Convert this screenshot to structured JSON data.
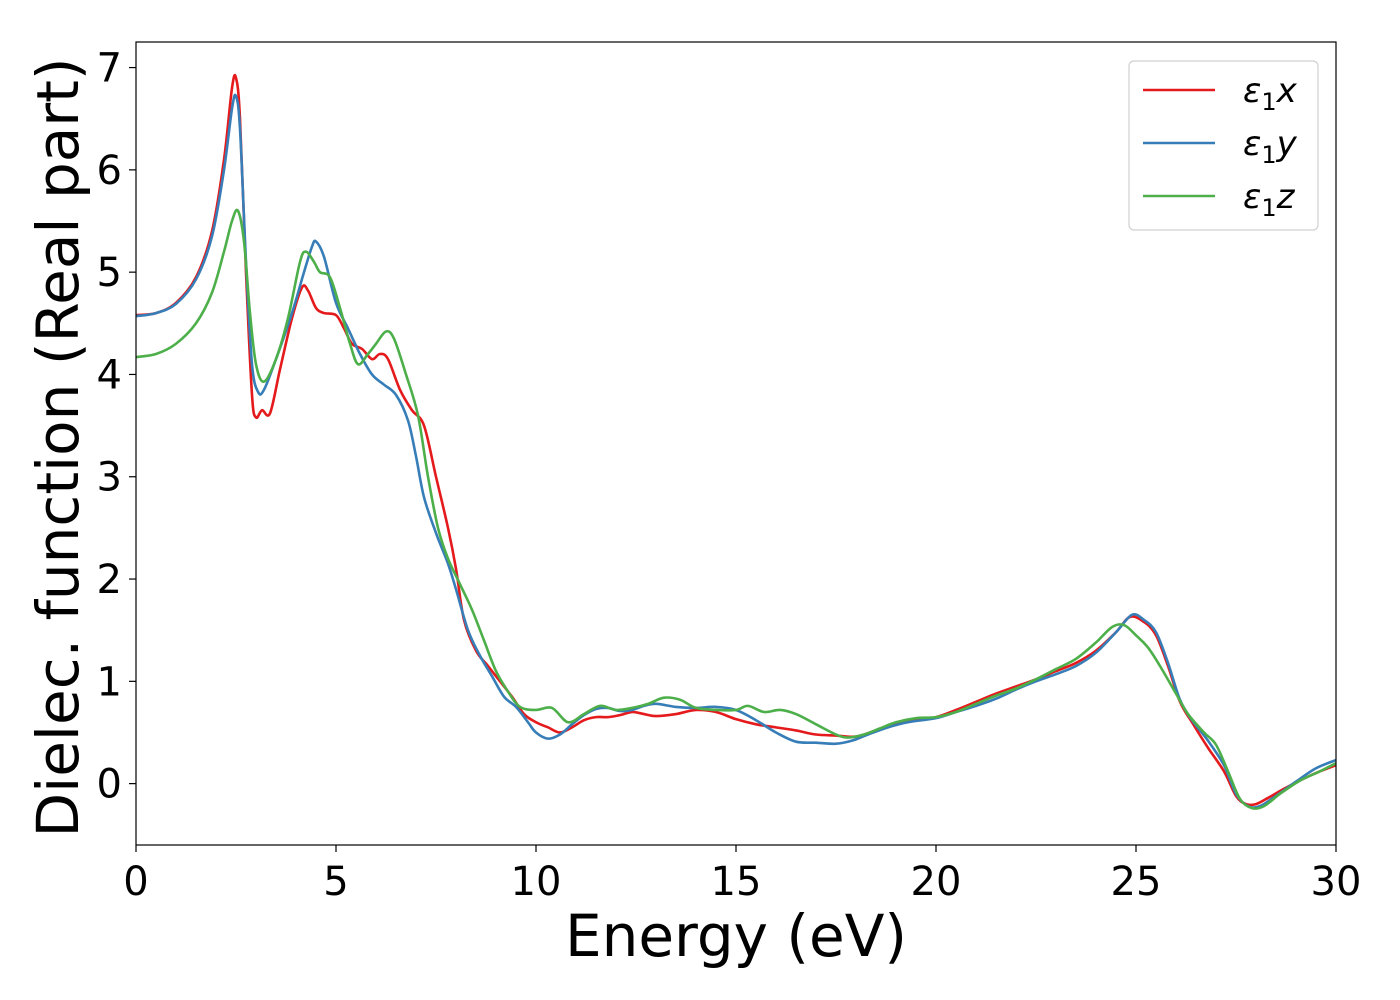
{
  "chart_data": {
    "type": "line",
    "title": "",
    "xlabel": "Energy (eV)",
    "ylabel": "Dielec. function (Real part)",
    "xlim": [
      0,
      30
    ],
    "ylim": [
      -0.6,
      7.25
    ],
    "xticks": [
      0,
      5,
      10,
      15,
      20,
      25,
      30
    ],
    "yticks": [
      0,
      1,
      2,
      3,
      4,
      5,
      6,
      7
    ],
    "grid": false,
    "legend_position": "top-right",
    "series": [
      {
        "name": "ε₁x",
        "legend_base": "ε",
        "legend_sub": "1",
        "legend_var": "x",
        "color": "#e41a1c",
        "points": [
          [
            0,
            4.58
          ],
          [
            0.5,
            4.6
          ],
          [
            1,
            4.7
          ],
          [
            1.5,
            4.95
          ],
          [
            1.9,
            5.4
          ],
          [
            2.2,
            6.1
          ],
          [
            2.4,
            6.8
          ],
          [
            2.5,
            6.9
          ],
          [
            2.6,
            6.5
          ],
          [
            2.75,
            5.0
          ],
          [
            2.9,
            3.8
          ],
          [
            3.0,
            3.58
          ],
          [
            3.15,
            3.65
          ],
          [
            3.35,
            3.62
          ],
          [
            3.6,
            4.05
          ],
          [
            3.9,
            4.55
          ],
          [
            4.15,
            4.85
          ],
          [
            4.3,
            4.82
          ],
          [
            4.5,
            4.65
          ],
          [
            4.7,
            4.6
          ],
          [
            5.0,
            4.58
          ],
          [
            5.2,
            4.45
          ],
          [
            5.4,
            4.3
          ],
          [
            5.65,
            4.25
          ],
          [
            5.9,
            4.15
          ],
          [
            6.1,
            4.2
          ],
          [
            6.3,
            4.15
          ],
          [
            6.6,
            3.85
          ],
          [
            6.9,
            3.65
          ],
          [
            7.2,
            3.5
          ],
          [
            7.5,
            3.0
          ],
          [
            7.8,
            2.5
          ],
          [
            8.0,
            2.1
          ],
          [
            8.2,
            1.6
          ],
          [
            8.5,
            1.3
          ],
          [
            8.8,
            1.15
          ],
          [
            9.1,
            1.0
          ],
          [
            9.4,
            0.85
          ],
          [
            9.7,
            0.68
          ],
          [
            10.0,
            0.6
          ],
          [
            10.3,
            0.55
          ],
          [
            10.6,
            0.5
          ],
          [
            10.9,
            0.55
          ],
          [
            11.2,
            0.62
          ],
          [
            11.5,
            0.65
          ],
          [
            11.8,
            0.65
          ],
          [
            12.1,
            0.67
          ],
          [
            12.4,
            0.7
          ],
          [
            12.7,
            0.68
          ],
          [
            13.0,
            0.66
          ],
          [
            13.5,
            0.68
          ],
          [
            14.0,
            0.72
          ],
          [
            14.5,
            0.7
          ],
          [
            15.0,
            0.63
          ],
          [
            15.5,
            0.58
          ],
          [
            16.0,
            0.55
          ],
          [
            16.5,
            0.52
          ],
          [
            17.0,
            0.48
          ],
          [
            17.5,
            0.47
          ],
          [
            18.0,
            0.46
          ],
          [
            18.5,
            0.52
          ],
          [
            19.0,
            0.58
          ],
          [
            19.5,
            0.62
          ],
          [
            20.0,
            0.65
          ],
          [
            20.5,
            0.72
          ],
          [
            21.0,
            0.8
          ],
          [
            21.5,
            0.88
          ],
          [
            22.0,
            0.95
          ],
          [
            22.5,
            1.02
          ],
          [
            23.0,
            1.1
          ],
          [
            23.5,
            1.18
          ],
          [
            24.0,
            1.3
          ],
          [
            24.5,
            1.48
          ],
          [
            24.85,
            1.63
          ],
          [
            25.2,
            1.58
          ],
          [
            25.5,
            1.45
          ],
          [
            25.8,
            1.15
          ],
          [
            26.1,
            0.8
          ],
          [
            26.4,
            0.6
          ],
          [
            26.8,
            0.35
          ],
          [
            27.2,
            0.12
          ],
          [
            27.5,
            -0.12
          ],
          [
            27.75,
            -0.2
          ],
          [
            28.0,
            -0.2
          ],
          [
            28.3,
            -0.14
          ],
          [
            28.7,
            -0.05
          ],
          [
            29.2,
            0.05
          ],
          [
            29.6,
            0.12
          ],
          [
            30,
            0.18
          ]
        ]
      },
      {
        "name": "ε₁y",
        "legend_base": "ε",
        "legend_sub": "1",
        "legend_var": "y",
        "color": "#377eb8",
        "points": [
          [
            0,
            4.57
          ],
          [
            0.5,
            4.6
          ],
          [
            1,
            4.69
          ],
          [
            1.5,
            4.93
          ],
          [
            1.9,
            5.35
          ],
          [
            2.2,
            6.0
          ],
          [
            2.4,
            6.6
          ],
          [
            2.5,
            6.72
          ],
          [
            2.6,
            6.4
          ],
          [
            2.75,
            5.1
          ],
          [
            2.9,
            4.1
          ],
          [
            3.05,
            3.83
          ],
          [
            3.2,
            3.85
          ],
          [
            3.5,
            4.15
          ],
          [
            3.9,
            4.6
          ],
          [
            4.2,
            5.0
          ],
          [
            4.4,
            5.25
          ],
          [
            4.5,
            5.3
          ],
          [
            4.7,
            5.15
          ],
          [
            5.0,
            4.7
          ],
          [
            5.3,
            4.45
          ],
          [
            5.6,
            4.2
          ],
          [
            5.9,
            4.0
          ],
          [
            6.2,
            3.9
          ],
          [
            6.5,
            3.8
          ],
          [
            6.8,
            3.55
          ],
          [
            7.0,
            3.2
          ],
          [
            7.2,
            2.8
          ],
          [
            7.5,
            2.45
          ],
          [
            7.8,
            2.15
          ],
          [
            8.0,
            1.9
          ],
          [
            8.3,
            1.5
          ],
          [
            8.6,
            1.25
          ],
          [
            8.9,
            1.05
          ],
          [
            9.2,
            0.85
          ],
          [
            9.5,
            0.75
          ],
          [
            9.8,
            0.6
          ],
          [
            10.0,
            0.5
          ],
          [
            10.3,
            0.44
          ],
          [
            10.6,
            0.48
          ],
          [
            10.9,
            0.58
          ],
          [
            11.2,
            0.67
          ],
          [
            11.5,
            0.73
          ],
          [
            11.8,
            0.74
          ],
          [
            12.1,
            0.71
          ],
          [
            12.4,
            0.72
          ],
          [
            12.7,
            0.76
          ],
          [
            13.0,
            0.78
          ],
          [
            13.5,
            0.75
          ],
          [
            14.0,
            0.74
          ],
          [
            14.5,
            0.75
          ],
          [
            15.0,
            0.72
          ],
          [
            15.5,
            0.62
          ],
          [
            16.0,
            0.5
          ],
          [
            16.5,
            0.41
          ],
          [
            17.0,
            0.4
          ],
          [
            17.5,
            0.39
          ],
          [
            17.9,
            0.42
          ],
          [
            18.3,
            0.48
          ],
          [
            18.8,
            0.55
          ],
          [
            19.3,
            0.6
          ],
          [
            20.0,
            0.64
          ],
          [
            20.5,
            0.7
          ],
          [
            21.0,
            0.76
          ],
          [
            21.5,
            0.83
          ],
          [
            22.0,
            0.92
          ],
          [
            22.5,
            1.0
          ],
          [
            23.0,
            1.07
          ],
          [
            23.5,
            1.15
          ],
          [
            24.0,
            1.28
          ],
          [
            24.5,
            1.48
          ],
          [
            24.9,
            1.65
          ],
          [
            25.2,
            1.6
          ],
          [
            25.5,
            1.48
          ],
          [
            25.8,
            1.18
          ],
          [
            26.1,
            0.82
          ],
          [
            26.4,
            0.62
          ],
          [
            26.8,
            0.42
          ],
          [
            27.2,
            0.18
          ],
          [
            27.5,
            -0.1
          ],
          [
            27.8,
            -0.22
          ],
          [
            28.1,
            -0.22
          ],
          [
            28.5,
            -0.12
          ],
          [
            29.0,
            0.02
          ],
          [
            29.5,
            0.15
          ],
          [
            30,
            0.23
          ]
        ]
      },
      {
        "name": "ε₁z",
        "legend_base": "ε",
        "legend_sub": "1",
        "legend_var": "z",
        "color": "#4daf4a",
        "points": [
          [
            0,
            4.17
          ],
          [
            0.5,
            4.2
          ],
          [
            1,
            4.3
          ],
          [
            1.5,
            4.5
          ],
          [
            1.9,
            4.8
          ],
          [
            2.2,
            5.2
          ],
          [
            2.4,
            5.5
          ],
          [
            2.55,
            5.6
          ],
          [
            2.7,
            5.3
          ],
          [
            2.85,
            4.6
          ],
          [
            3.0,
            4.1
          ],
          [
            3.2,
            3.93
          ],
          [
            3.5,
            4.15
          ],
          [
            3.8,
            4.55
          ],
          [
            4.1,
            5.1
          ],
          [
            4.25,
            5.2
          ],
          [
            4.45,
            5.1
          ],
          [
            4.6,
            5.0
          ],
          [
            4.85,
            4.95
          ],
          [
            5.1,
            4.65
          ],
          [
            5.35,
            4.3
          ],
          [
            5.55,
            4.1
          ],
          [
            5.8,
            4.2
          ],
          [
            6.0,
            4.3
          ],
          [
            6.25,
            4.42
          ],
          [
            6.45,
            4.35
          ],
          [
            6.75,
            4.0
          ],
          [
            7.05,
            3.6
          ],
          [
            7.3,
            3.0
          ],
          [
            7.55,
            2.5
          ],
          [
            7.8,
            2.2
          ],
          [
            8.1,
            1.95
          ],
          [
            8.4,
            1.7
          ],
          [
            8.7,
            1.4
          ],
          [
            9.0,
            1.1
          ],
          [
            9.3,
            0.9
          ],
          [
            9.6,
            0.75
          ],
          [
            10.0,
            0.72
          ],
          [
            10.4,
            0.74
          ],
          [
            10.8,
            0.6
          ],
          [
            11.2,
            0.68
          ],
          [
            11.6,
            0.76
          ],
          [
            12.0,
            0.72
          ],
          [
            12.4,
            0.74
          ],
          [
            12.8,
            0.78
          ],
          [
            13.2,
            0.84
          ],
          [
            13.6,
            0.82
          ],
          [
            14.0,
            0.74
          ],
          [
            14.5,
            0.72
          ],
          [
            15.0,
            0.72
          ],
          [
            15.3,
            0.76
          ],
          [
            15.7,
            0.7
          ],
          [
            16.1,
            0.72
          ],
          [
            16.5,
            0.68
          ],
          [
            17.0,
            0.58
          ],
          [
            17.5,
            0.48
          ],
          [
            17.8,
            0.45
          ],
          [
            18.2,
            0.48
          ],
          [
            18.6,
            0.54
          ],
          [
            19.0,
            0.6
          ],
          [
            19.5,
            0.64
          ],
          [
            20.0,
            0.65
          ],
          [
            20.5,
            0.7
          ],
          [
            21.0,
            0.78
          ],
          [
            21.5,
            0.86
          ],
          [
            22.0,
            0.93
          ],
          [
            22.5,
            1.02
          ],
          [
            23.0,
            1.12
          ],
          [
            23.5,
            1.22
          ],
          [
            24.0,
            1.38
          ],
          [
            24.4,
            1.53
          ],
          [
            24.7,
            1.55
          ],
          [
            25.0,
            1.45
          ],
          [
            25.3,
            1.33
          ],
          [
            25.6,
            1.15
          ],
          [
            26.0,
            0.88
          ],
          [
            26.3,
            0.68
          ],
          [
            26.7,
            0.5
          ],
          [
            27.0,
            0.38
          ],
          [
            27.3,
            0.12
          ],
          [
            27.6,
            -0.15
          ],
          [
            27.9,
            -0.24
          ],
          [
            28.2,
            -0.22
          ],
          [
            28.6,
            -0.1
          ],
          [
            29.1,
            0.03
          ],
          [
            29.6,
            0.12
          ],
          [
            30,
            0.2
          ]
        ]
      }
    ]
  }
}
